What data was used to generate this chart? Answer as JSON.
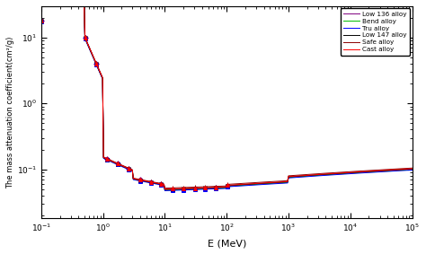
{
  "title": "",
  "xlabel": "E (MeV)",
  "ylabel": "The mass attenuation coefficient(cm²/g)",
  "xlim": [
    0.1,
    100000
  ],
  "ylim": [
    0.018,
    30
  ],
  "legend_entries": [
    "Low 136 alloy",
    "Bend alloy",
    "Tru alloy",
    "Low 147 alloy",
    "Safe alloy",
    "Cast alloy"
  ],
  "colors": [
    "purple",
    "#00bb00",
    "blue",
    "black",
    "#8b0000",
    "red"
  ],
  "markers": [
    "D",
    null,
    "s",
    "x",
    "+",
    "^"
  ],
  "background": "#ffffff"
}
